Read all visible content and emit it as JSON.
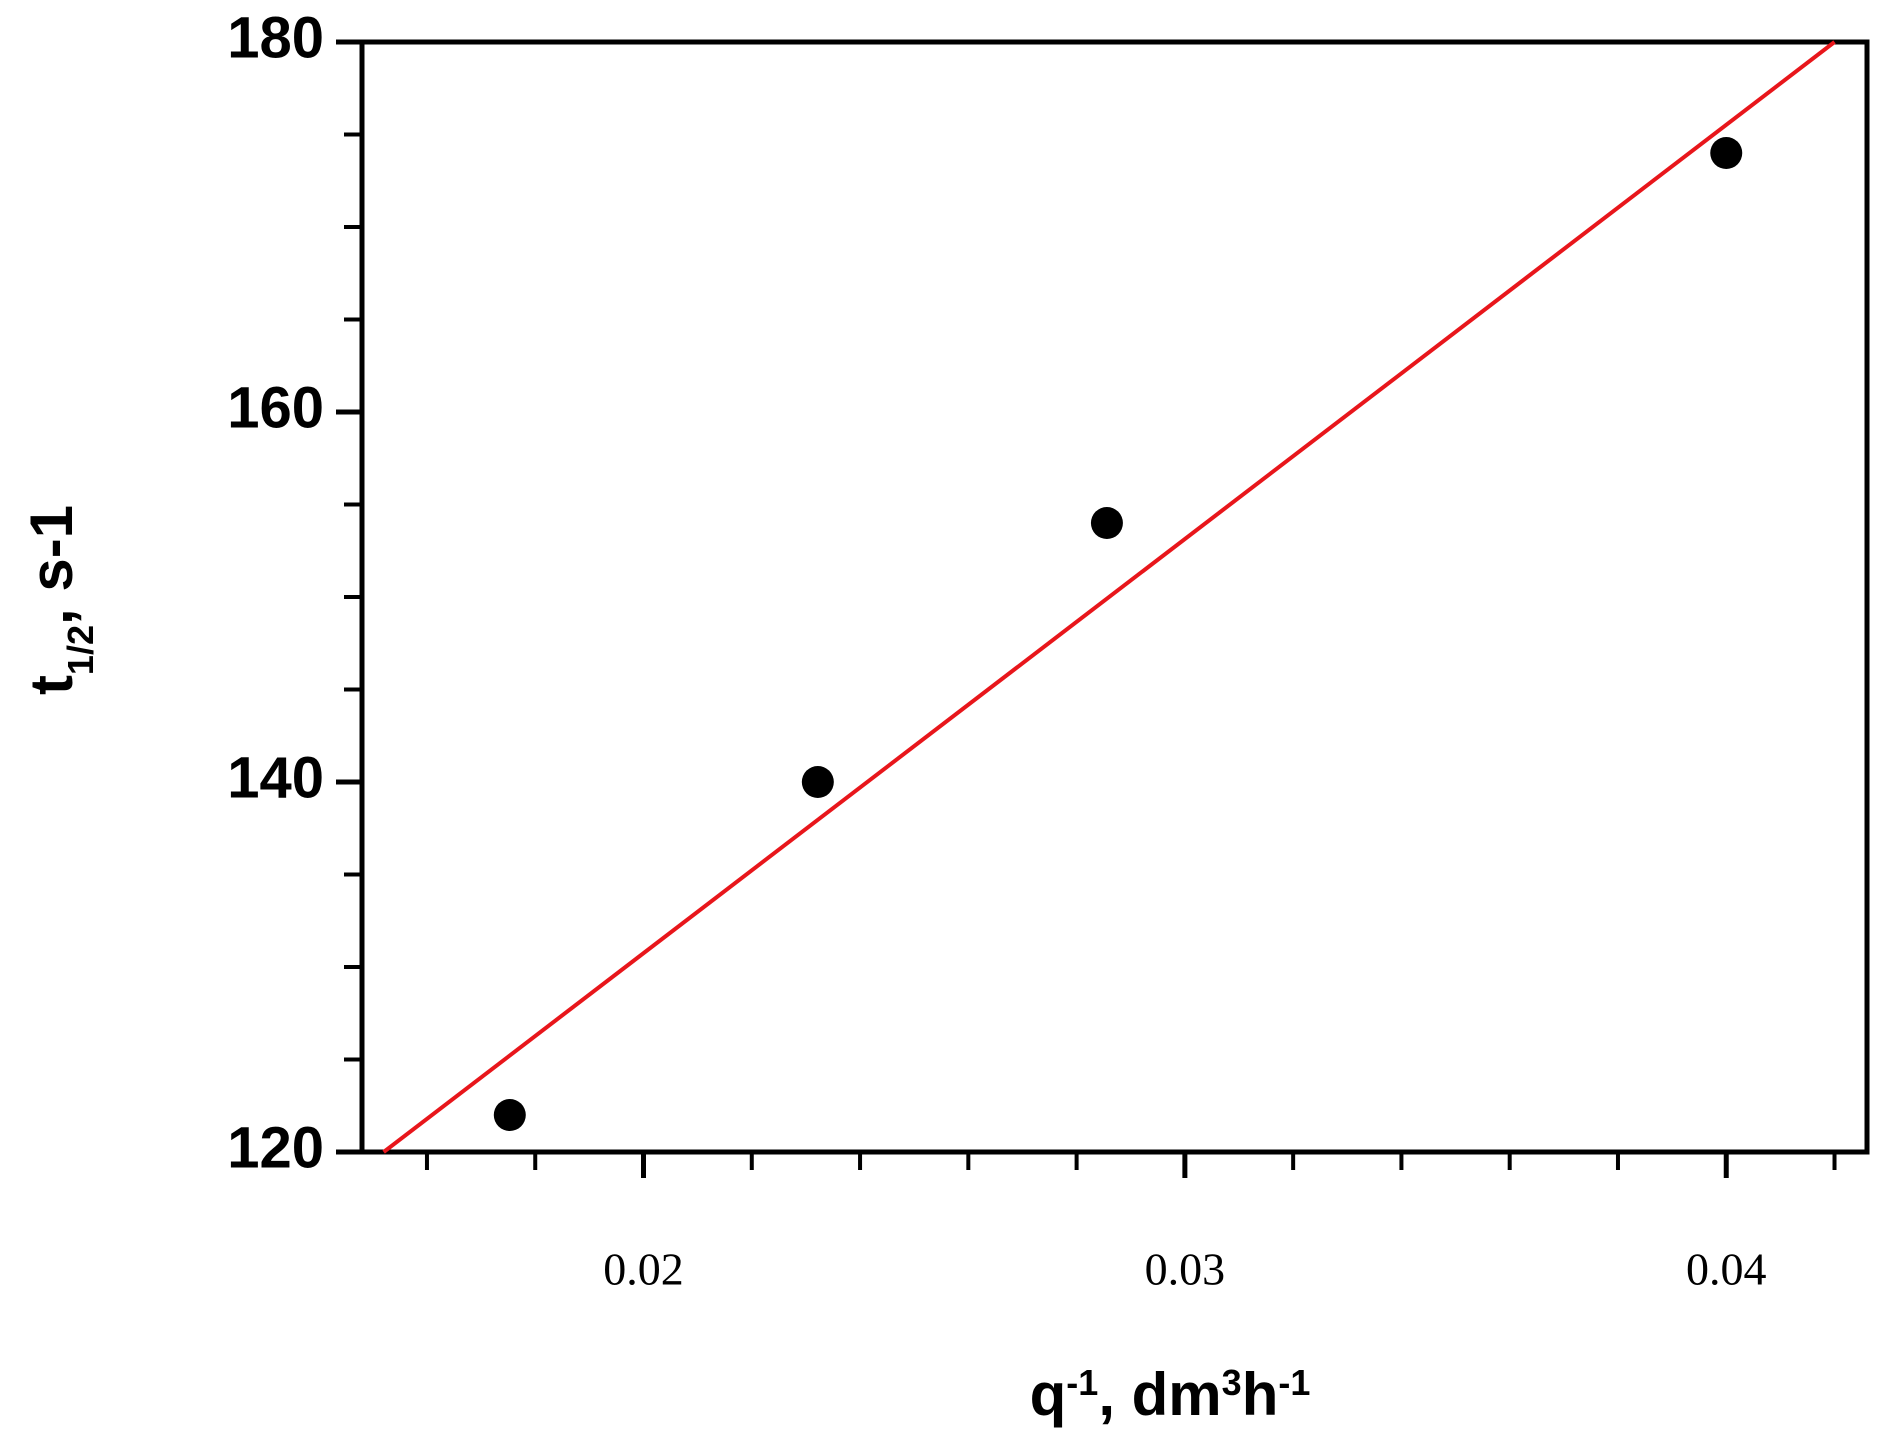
{
  "chart_data": {
    "type": "scatter",
    "x_label": [
      {
        "text": "q"
      },
      {
        "text": "-1",
        "sup": true
      },
      {
        "text": ", dm"
      },
      {
        "text": "3",
        "sup": true
      },
      {
        "text": "h"
      },
      {
        "text": "-1",
        "sup": true
      }
    ],
    "y_label": [
      {
        "text": "t"
      },
      {
        "text": "1/2",
        "sub": true
      },
      {
        "text": ", s-1"
      }
    ],
    "points": {
      "color": "#000000",
      "x": [
        0.01753,
        0.02322,
        0.02856,
        0.04
      ],
      "y": [
        122,
        140,
        154,
        174
      ]
    },
    "fit_line": {
      "color": "#e8161b",
      "x": [
        0.0152,
        0.042
      ],
      "y": [
        120,
        180
      ]
    },
    "xlim": [
      0.0148,
      0.0426
    ],
    "ylim": [
      120,
      180
    ],
    "xticks": [
      0.02,
      0.03,
      0.04
    ],
    "xminor_ticks": [
      0.016,
      0.018,
      0.022,
      0.024,
      0.026,
      0.028,
      0.032,
      0.034,
      0.036,
      0.038,
      0.042
    ],
    "yticks": [
      120,
      140,
      160,
      180
    ],
    "yminor_ticks": [
      125,
      130,
      135,
      145,
      150,
      155,
      165,
      170,
      175
    ],
    "grid": false
  }
}
